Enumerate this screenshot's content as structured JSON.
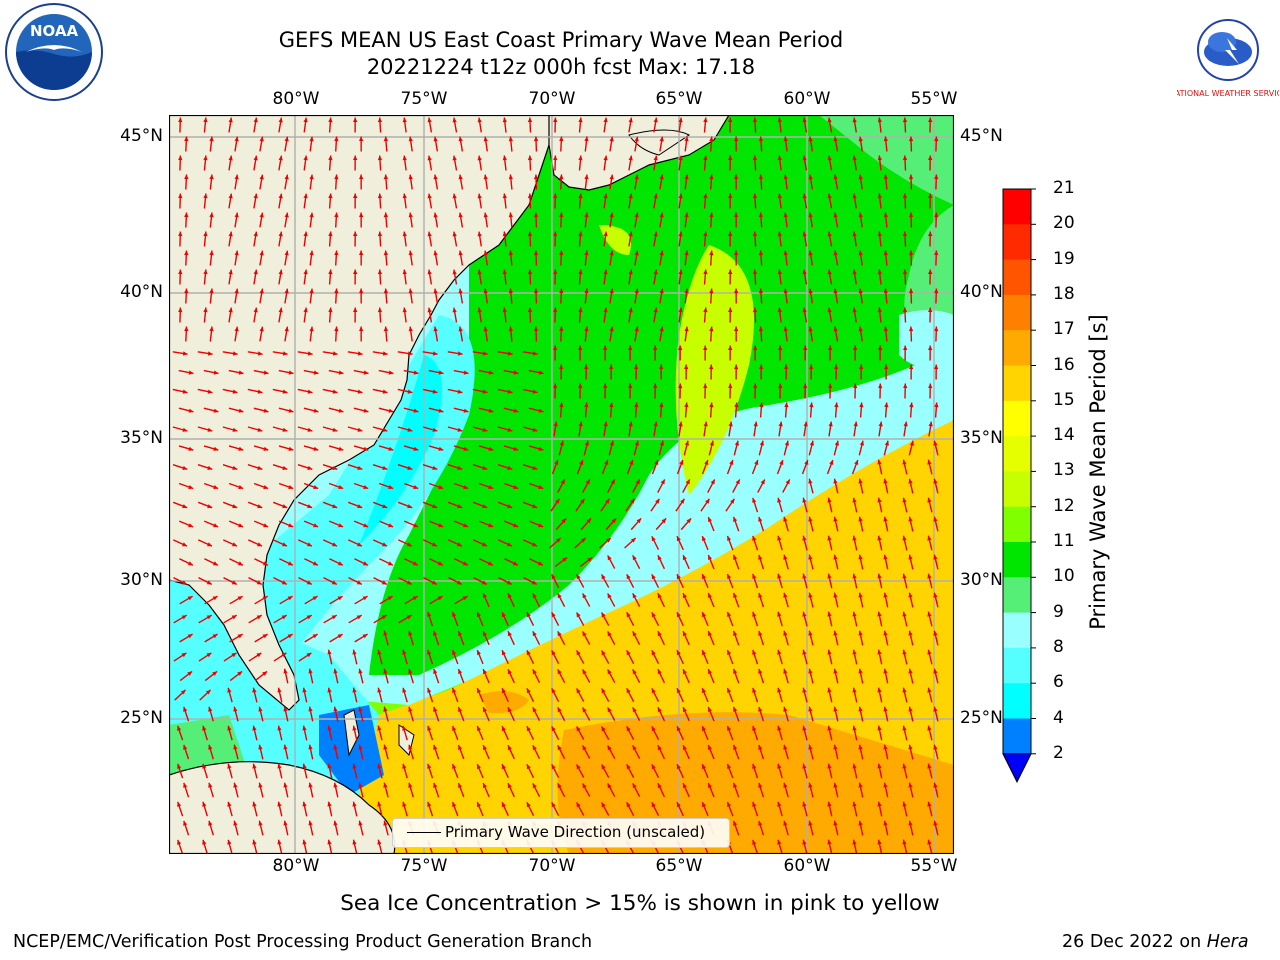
{
  "title_line1": "GEFS MEAN US East Coast Primary Wave Mean Period",
  "title_line2": "20221224 t12z 000h fcst   Max: 17.18",
  "lon_ticks": [
    "80°W",
    "75°W",
    "70°W",
    "65°W",
    "60°W",
    "55°W"
  ],
  "lat_ticks": [
    "45°N",
    "40°N",
    "35°N",
    "30°N",
    "25°N"
  ],
  "colorbar": {
    "label": "Primary Wave Mean Period [s]",
    "ticks": [
      "21",
      "20",
      "19",
      "18",
      "17",
      "16",
      "15",
      "14",
      "13",
      "12",
      "11",
      "10",
      "9",
      "8",
      "6",
      "4",
      "2"
    ],
    "colors": [
      "#ff0000",
      "#ff2a00",
      "#ff5500",
      "#ff8000",
      "#ffaa00",
      "#ffd400",
      "#ffff00",
      "#e6ff00",
      "#c8ff00",
      "#80ff00",
      "#00e600",
      "#55ee77",
      "#99ffff",
      "#55ffff",
      "#00ffff",
      "#007fff",
      "#0000ff"
    ]
  },
  "legend_label": "Primary Wave Direction (unscaled)",
  "sea_ice_note": "Sea Ice Concentration > 15% is shown in pink to yellow",
  "footer_left": "NCEP/EMC/Verification Post Processing Product Generation Branch",
  "footer_right_date": "26 Dec 2022 on ",
  "footer_right_host": "Hera",
  "logo_left_text": "NOAA",
  "logo_right_text": "NATIONAL WEATHER SERVICE"
}
